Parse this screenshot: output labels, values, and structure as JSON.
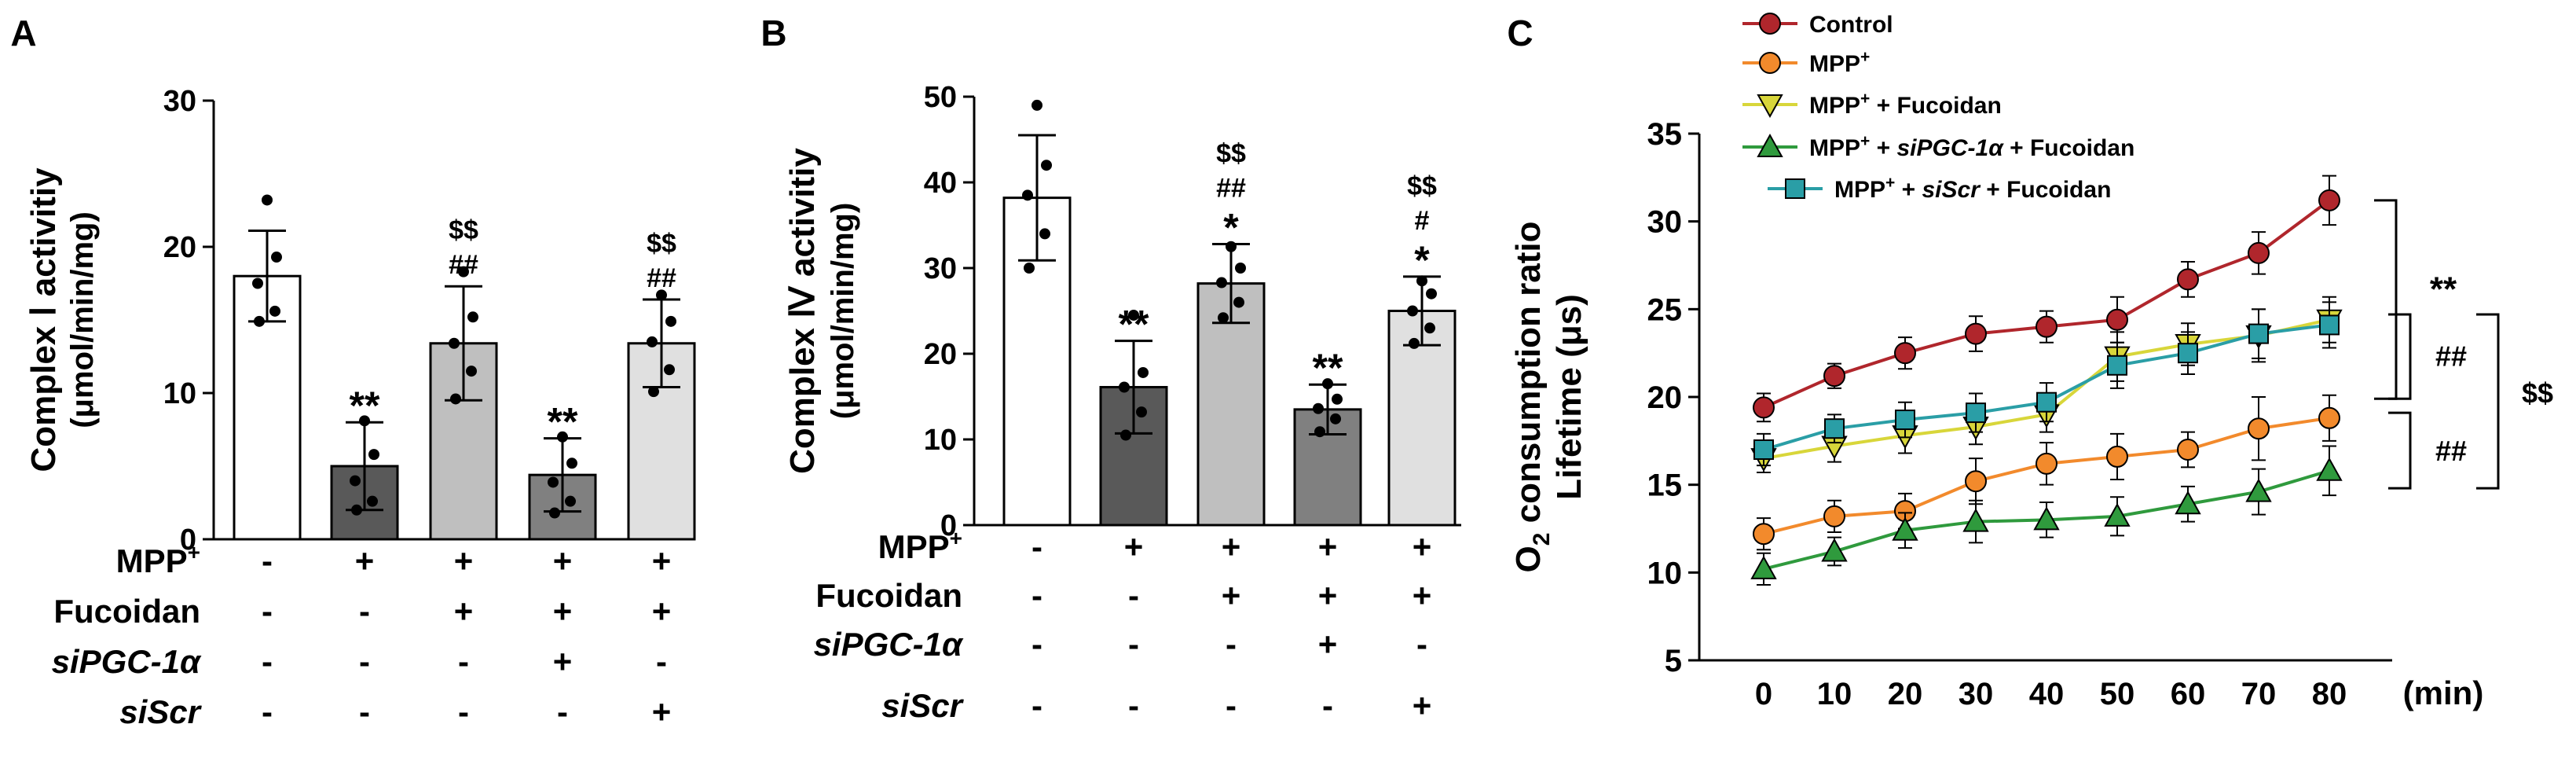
{
  "colors": {
    "control": "#b0262c",
    "mpp": "#f28a2c",
    "mpp_fuc": "#d8d63a",
    "mpp_sipgc_fuc": "#2f9a3d",
    "mpp_siscr_fuc": "#2a9ea6",
    "bar_white": "#ffffff",
    "bar_dark": "#595959",
    "bar_light": "#bfbfbf",
    "bar_mid": "#808080",
    "bar_pale": "#e0e0e0",
    "axis": "#000000"
  },
  "treatment_rows": [
    {
      "label": "MPP",
      "sup": "+",
      "italic": false,
      "signs": [
        "-",
        "+",
        "+",
        "+",
        "+"
      ]
    },
    {
      "label": "Fucoidan",
      "sup": "",
      "italic": false,
      "signs": [
        "-",
        "-",
        "+",
        "+",
        "+"
      ]
    },
    {
      "label": "siPGC-1α",
      "sup": "",
      "italic": true,
      "signs": [
        "-",
        "-",
        "-",
        "+",
        "-"
      ]
    },
    {
      "label": "siScr",
      "sup": "",
      "italic": true,
      "signs": [
        "-",
        "-",
        "-",
        "-",
        "+"
      ]
    }
  ],
  "chart_data": [
    {
      "panel": "A",
      "type": "bar",
      "ylabel": [
        "Complex Ⅰ activitiy",
        "(μmol/min/mg)"
      ],
      "ylim": [
        0,
        30
      ],
      "yticks": [
        0,
        10,
        20,
        30
      ],
      "values": [
        18.0,
        5.0,
        13.4,
        4.4,
        13.4
      ],
      "errors": [
        3.1,
        3.0,
        3.9,
        2.5,
        3.0
      ],
      "fills": [
        "bar_white",
        "bar_dark",
        "bar_light",
        "bar_mid",
        "bar_pale"
      ],
      "points": [
        [
          23.2,
          19.3,
          17.5,
          15.6,
          14.9
        ],
        [
          8.1,
          5.8,
          4.0,
          2.6,
          2.0
        ],
        [
          18.3,
          15.2,
          13.4,
          11.5,
          9.6
        ],
        [
          7.0,
          5.2,
          3.9,
          2.6,
          1.8
        ],
        [
          16.7,
          14.9,
          13.5,
          11.6,
          10.1
        ]
      ],
      "annotations": [
        [],
        [
          "**"
        ],
        [
          "$$",
          "##"
        ],
        [
          "**"
        ],
        [
          "$$",
          "##"
        ]
      ]
    },
    {
      "panel": "B",
      "type": "bar",
      "ylabel": [
        "Complex Ⅳ activitiy",
        "(μmol/min/mg)"
      ],
      "ylim": [
        0,
        50
      ],
      "yticks": [
        0,
        10,
        20,
        30,
        40,
        50
      ],
      "values": [
        38.2,
        16.1,
        28.2,
        13.5,
        25.0
      ],
      "errors": [
        7.3,
        5.4,
        4.6,
        2.9,
        4.0
      ],
      "fills": [
        "bar_white",
        "bar_dark",
        "bar_light",
        "bar_mid",
        "bar_pale"
      ],
      "points": [
        [
          49.0,
          42.0,
          38.5,
          34.0,
          30.0
        ],
        [
          24.5,
          17.8,
          16.1,
          13.2,
          10.5
        ],
        [
          32.5,
          30.0,
          28.3,
          26.0,
          24.2
        ],
        [
          16.5,
          14.7,
          13.6,
          12.4,
          10.9
        ],
        [
          28.5,
          27.0,
          25.0,
          23.0,
          21.2
        ]
      ],
      "annotations": [
        [],
        [
          "**"
        ],
        [
          "$$",
          "##",
          "*"
        ],
        [
          "**"
        ],
        [
          "$$",
          "#",
          "*"
        ]
      ]
    },
    {
      "panel": "C",
      "type": "line",
      "ylabel": [
        "O",
        "2",
        " consumption ratio"
      ],
      "ylabel2": "Lifetime (μs)",
      "x": [
        0,
        10,
        20,
        30,
        40,
        50,
        60,
        70,
        80
      ],
      "xunit": "(min)",
      "ylim": [
        5,
        35
      ],
      "yticks": [
        5,
        10,
        15,
        20,
        25,
        30,
        35
      ],
      "series": [
        {
          "name": "Control",
          "key": "control",
          "marker": "circle",
          "values": [
            19.4,
            21.2,
            22.5,
            23.6,
            24.0,
            24.4,
            26.7,
            28.2,
            31.2
          ],
          "errors": [
            0.8,
            0.7,
            0.9,
            1.0,
            0.9,
            1.3,
            1.0,
            1.2,
            1.4
          ]
        },
        {
          "name": "MPP",
          "sup": "+",
          "name_suffix": "",
          "key": "mpp",
          "marker": "circle",
          "values": [
            12.2,
            13.2,
            13.5,
            15.2,
            16.2,
            16.6,
            17.0,
            18.2,
            18.8
          ],
          "errors": [
            0.9,
            0.9,
            1.0,
            1.3,
            1.2,
            1.3,
            1.0,
            1.8,
            1.3
          ]
        },
        {
          "name": "MPP",
          "sup": "+",
          "name_suffix": " + Fucoidan",
          "key": "mpp_fuc",
          "marker": "triangle-down",
          "values": [
            16.5,
            17.2,
            17.8,
            18.3,
            19.0,
            22.3,
            23.0,
            23.5,
            24.4
          ],
          "errors": [
            0.8,
            0.9,
            1.0,
            1.0,
            1.0,
            1.4,
            1.2,
            1.5,
            1.3
          ]
        },
        {
          "name": "MPP",
          "sup": "+",
          "name_suffix": " + ",
          "name_italic": "siPGC-1α",
          "name_suffix2": " + Fucoidan",
          "key": "mpp_sipgc_fuc",
          "marker": "triangle-up",
          "values": [
            10.2,
            11.2,
            12.4,
            12.9,
            13.0,
            13.2,
            13.9,
            14.6,
            15.8
          ],
          "errors": [
            0.9,
            0.8,
            1.0,
            1.2,
            1.0,
            1.1,
            1.0,
            1.3,
            1.4
          ]
        },
        {
          "name": "MPP",
          "sup": "+",
          "name_suffix": " + ",
          "name_italic": "siScr",
          "name_suffix2": " + Fucoidan",
          "key": "mpp_siscr_fuc",
          "marker": "square",
          "values": [
            17.0,
            18.2,
            18.7,
            19.1,
            19.7,
            21.8,
            22.5,
            23.6,
            24.1
          ],
          "errors": [
            0.9,
            0.8,
            1.0,
            1.1,
            1.1,
            1.3,
            1.2,
            1.4,
            1.3
          ]
        }
      ],
      "legend": "top",
      "significance": [
        "**",
        "##",
        "$$",
        "##"
      ]
    }
  ]
}
